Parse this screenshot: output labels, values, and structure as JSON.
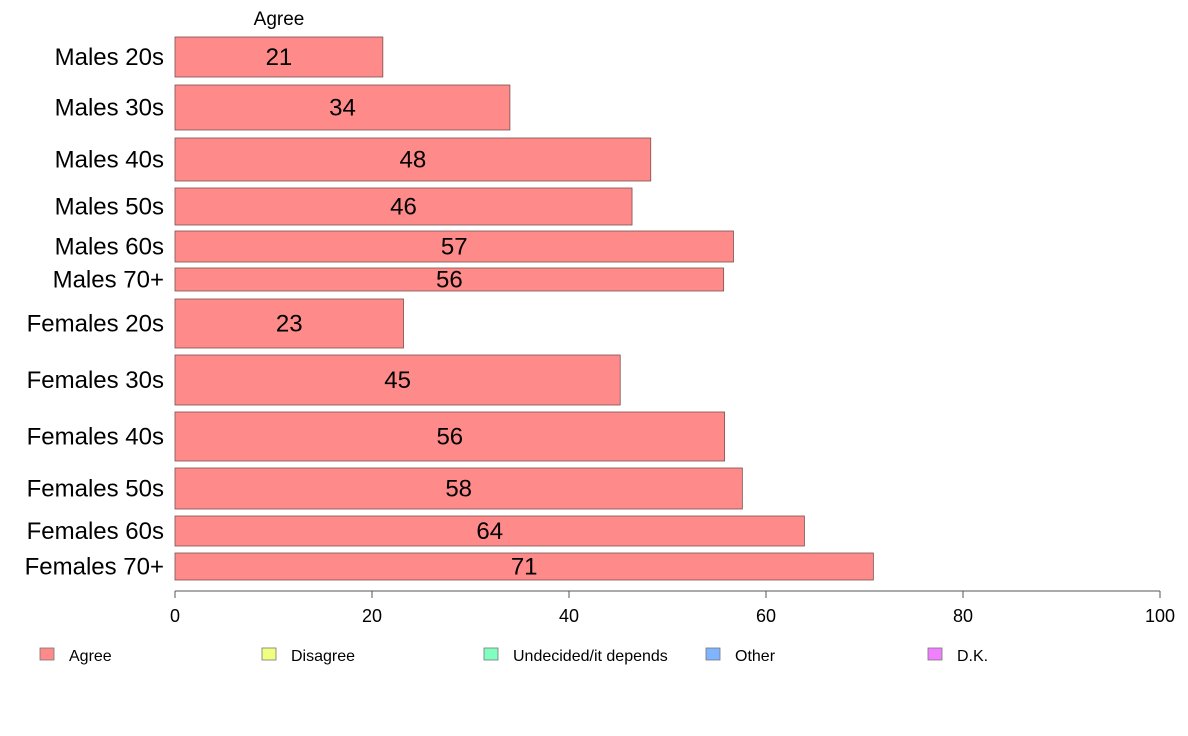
{
  "chart_data": {
    "type": "bar",
    "orientation": "horizontal",
    "series_title": "Agree",
    "categories": [
      "Males 20s",
      "Males 30s",
      "Males 40s",
      "Males 50s",
      "Males 60s",
      "Males 70+",
      "Females 20s",
      "Females 30s",
      "Females 40s",
      "Females 50s",
      "Females 60s",
      "Females 70+"
    ],
    "series": [
      {
        "name": "Agree",
        "color": "#ff8a8a",
        "values": [
          21.1,
          34.0,
          48.3,
          46.4,
          56.7,
          55.7,
          23.2,
          45.2,
          55.8,
          57.6,
          63.9,
          70.9
        ],
        "labels": [
          "21",
          "34",
          "48",
          "46",
          "57",
          "56",
          "23",
          "45",
          "56",
          "58",
          "64",
          "71"
        ]
      }
    ],
    "xlim": [
      0,
      100
    ],
    "xticks": [
      0,
      20,
      40,
      60,
      80,
      100
    ],
    "xtick_labels": [
      "0",
      "20",
      "40",
      "60",
      "80",
      "100"
    ],
    "grid": false,
    "legend_position": "bottom",
    "legend": [
      {
        "label": "Agree",
        "color": "#ff8a8a"
      },
      {
        "label": "Disagree",
        "color": "#f0ff80"
      },
      {
        "label": "Undecided/it depends",
        "color": "#80ffc0"
      },
      {
        "label": "Other",
        "color": "#80b4ff"
      },
      {
        "label": "D.K.",
        "color": "#f080ff"
      }
    ]
  }
}
